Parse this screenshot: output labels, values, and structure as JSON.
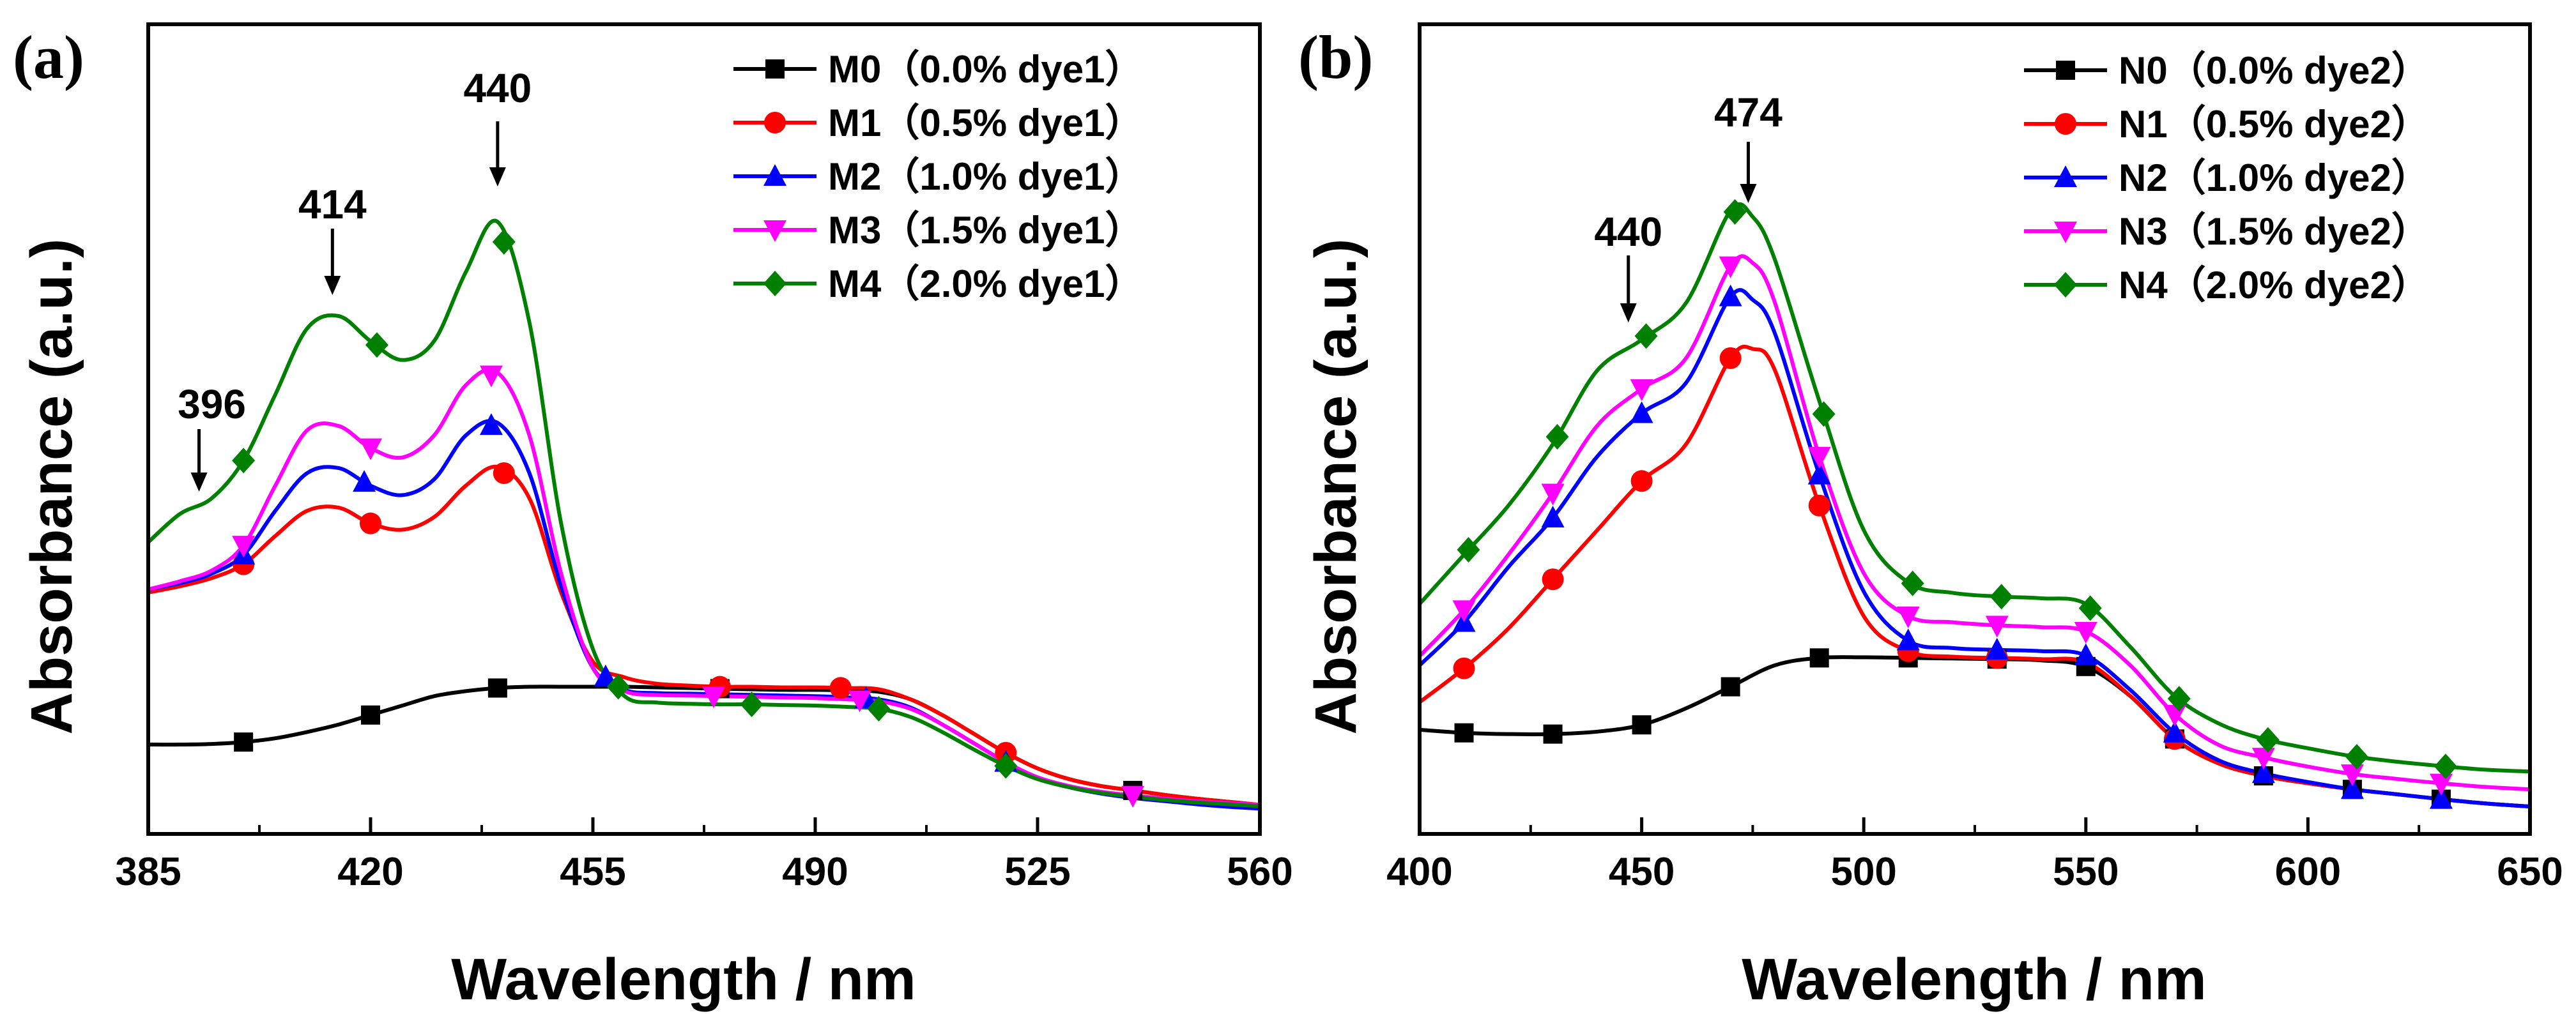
{
  "colors": {
    "s0": "#000000",
    "s1": "#ff0000",
    "s2": "#0000ff",
    "s3": "#ff00ff",
    "s4": "#008000"
  },
  "chart_data": [
    {
      "type": "line",
      "panel_label": "(a)",
      "title": "",
      "xlabel": "Wavelength / nm",
      "ylabel": "Absorbance (a.u.)",
      "xlim": [
        385,
        560
      ],
      "ylim": [
        0,
        1
      ],
      "xticks": [
        385,
        420,
        455,
        490,
        525,
        560
      ],
      "grid": false,
      "legend_position": "top-right",
      "series": [
        {
          "name": "M0（0.0% dye1）",
          "color": "#000000",
          "marker": "square",
          "x": [
            385,
            390,
            395,
            400,
            405,
            410,
            415,
            420,
            425,
            430,
            435,
            440,
            445,
            450,
            455,
            460,
            465,
            470,
            475,
            480,
            485,
            490,
            495,
            500,
            505,
            510,
            515,
            520,
            525,
            530,
            535,
            540,
            545,
            550,
            555,
            560
          ],
          "y": [
            0.128,
            0.128,
            0.129,
            0.132,
            0.138,
            0.148,
            0.16,
            0.175,
            0.19,
            0.205,
            0.213,
            0.218,
            0.22,
            0.22,
            0.22,
            0.22,
            0.219,
            0.218,
            0.217,
            0.216,
            0.215,
            0.215,
            0.214,
            0.212,
            0.2,
            0.175,
            0.145,
            0.115,
            0.09,
            0.073,
            0.062,
            0.055,
            0.048,
            0.042,
            0.037,
            0.032
          ],
          "marker_x": [
            400,
            420,
            440,
            475,
            540
          ]
        },
        {
          "name": "M1（0.5% dye1）",
          "color": "#ff0000",
          "marker": "circle",
          "x": [
            385,
            390,
            395,
            400,
            405,
            410,
            415,
            420,
            425,
            430,
            435,
            440,
            445,
            450,
            455,
            460,
            465,
            470,
            475,
            480,
            485,
            490,
            495,
            500,
            505,
            510,
            515,
            520,
            525,
            530,
            535,
            540,
            545,
            550,
            555,
            560
          ],
          "y": [
            0.37,
            0.38,
            0.393,
            0.415,
            0.46,
            0.5,
            0.505,
            0.48,
            0.47,
            0.49,
            0.54,
            0.57,
            0.52,
            0.37,
            0.26,
            0.235,
            0.225,
            0.222,
            0.22,
            0.22,
            0.219,
            0.219,
            0.218,
            0.216,
            0.2,
            0.175,
            0.145,
            0.115,
            0.09,
            0.073,
            0.062,
            0.055,
            0.048,
            0.042,
            0.037,
            0.032
          ],
          "marker_x": [
            400,
            420,
            441,
            475,
            494,
            520
          ]
        },
        {
          "name": "M2（1.0% dye1）",
          "color": "#0000ff",
          "marker": "triangle-up",
          "x": [
            385,
            390,
            395,
            400,
            405,
            410,
            415,
            420,
            425,
            430,
            435,
            440,
            445,
            450,
            455,
            460,
            465,
            470,
            475,
            480,
            485,
            490,
            495,
            500,
            505,
            510,
            515,
            520,
            525,
            530,
            535,
            540,
            545,
            550,
            555,
            560
          ],
          "y": [
            0.375,
            0.385,
            0.4,
            0.43,
            0.5,
            0.56,
            0.568,
            0.54,
            0.525,
            0.55,
            0.62,
            0.64,
            0.56,
            0.38,
            0.25,
            0.215,
            0.21,
            0.209,
            0.208,
            0.207,
            0.206,
            0.205,
            0.203,
            0.2,
            0.187,
            0.16,
            0.13,
            0.1,
            0.075,
            0.06,
            0.05,
            0.043,
            0.038,
            0.033,
            0.029,
            0.026
          ],
          "marker_x": [
            400,
            419,
            439,
            457,
            498,
            520
          ]
        },
        {
          "name": "M3（1.5% dye1）",
          "color": "#ff00ff",
          "marker": "triangle-down",
          "x": [
            385,
            390,
            395,
            400,
            405,
            410,
            415,
            420,
            425,
            430,
            435,
            440,
            445,
            450,
            455,
            460,
            465,
            470,
            475,
            480,
            485,
            490,
            495,
            500,
            505,
            510,
            515,
            520,
            525,
            530,
            535,
            540,
            545,
            550,
            555,
            560
          ],
          "y": [
            0.375,
            0.388,
            0.405,
            0.445,
            0.54,
            0.628,
            0.635,
            0.6,
            0.585,
            0.62,
            0.7,
            0.72,
            0.62,
            0.4,
            0.25,
            0.213,
            0.207,
            0.206,
            0.205,
            0.204,
            0.203,
            0.202,
            0.2,
            0.197,
            0.185,
            0.16,
            0.13,
            0.1,
            0.076,
            0.062,
            0.053,
            0.047,
            0.042,
            0.038,
            0.035,
            0.032
          ],
          "marker_x": [
            400,
            420,
            439,
            474,
            497,
            540
          ]
        },
        {
          "name": "M4（2.0% dye1）",
          "color": "#008000",
          "marker": "diamond",
          "x": [
            385,
            390,
            395,
            400,
            405,
            410,
            415,
            420,
            425,
            430,
            435,
            440,
            445,
            450,
            455,
            460,
            465,
            470,
            475,
            480,
            485,
            490,
            495,
            500,
            505,
            510,
            515,
            520,
            525,
            530,
            535,
            540,
            545,
            550,
            555,
            560
          ],
          "y": [
            0.45,
            0.495,
            0.52,
            0.58,
            0.685,
            0.79,
            0.81,
            0.77,
            0.74,
            0.77,
            0.88,
            0.96,
            0.8,
            0.48,
            0.28,
            0.205,
            0.195,
            0.193,
            0.192,
            0.192,
            0.191,
            0.19,
            0.188,
            0.185,
            0.172,
            0.148,
            0.12,
            0.094,
            0.073,
            0.06,
            0.051,
            0.045,
            0.04,
            0.036,
            0.033,
            0.03
          ],
          "marker_x": [
            400,
            421,
            441,
            459,
            480,
            500,
            520
          ]
        }
      ],
      "annotations": [
        {
          "text": "440",
          "x": 440,
          "arrow": true
        },
        {
          "text": "414",
          "x": 414,
          "arrow": true
        },
        {
          "text": "396",
          "x": 393,
          "arrow": true
        }
      ]
    },
    {
      "type": "line",
      "panel_label": "(b)",
      "title": "",
      "xlabel": "Wavelength / nm",
      "ylabel": "Absorbance (a.u.)",
      "xlim": [
        400,
        650
      ],
      "ylim": [
        0,
        1
      ],
      "xticks": [
        400,
        450,
        500,
        550,
        600,
        650
      ],
      "grid": false,
      "legend_position": "top-right",
      "series": [
        {
          "name": "N0（0.0% dye2）",
          "color": "#000000",
          "marker": "square",
          "x": [
            400,
            410,
            420,
            430,
            440,
            450,
            460,
            470,
            480,
            490,
            500,
            510,
            520,
            530,
            540,
            550,
            560,
            570,
            580,
            590,
            600,
            610,
            620,
            630,
            640,
            650
          ],
          "y": [
            0.155,
            0.15,
            0.148,
            0.148,
            0.152,
            0.163,
            0.19,
            0.225,
            0.26,
            0.272,
            0.273,
            0.272,
            0.271,
            0.27,
            0.268,
            0.258,
            0.21,
            0.14,
            0.1,
            0.08,
            0.068,
            0.058,
            0.05,
            0.042,
            0.035,
            0.03
          ],
          "marker_x": [
            410,
            430,
            450,
            470,
            490,
            510,
            530,
            550,
            570,
            590,
            610,
            630
          ]
        },
        {
          "name": "N1（0.5% dye2）",
          "color": "#ff0000",
          "marker": "circle",
          "x": [
            400,
            410,
            420,
            430,
            440,
            450,
            460,
            470,
            475,
            480,
            490,
            500,
            510,
            520,
            530,
            540,
            550,
            560,
            570,
            580,
            590,
            600,
            610,
            620,
            630,
            640,
            650
          ],
          "y": [
            0.2,
            0.255,
            0.32,
            0.4,
            0.48,
            0.56,
            0.62,
            0.76,
            0.775,
            0.74,
            0.52,
            0.34,
            0.283,
            0.274,
            0.272,
            0.27,
            0.265,
            0.21,
            0.14,
            0.1,
            0.08,
            0.068,
            0.058,
            0.05,
            0.042,
            0.035,
            0.03
          ],
          "marker_x": [
            410,
            430,
            450,
            470,
            490,
            510,
            530,
            570
          ]
        },
        {
          "name": "N2（1.0% dye2）",
          "color": "#0000ff",
          "marker": "triangle-up",
          "x": [
            400,
            410,
            420,
            430,
            440,
            450,
            460,
            470,
            475,
            480,
            490,
            500,
            510,
            520,
            530,
            540,
            550,
            560,
            570,
            580,
            590,
            600,
            610,
            620,
            630,
            640,
            650
          ],
          "y": [
            0.26,
            0.33,
            0.42,
            0.5,
            0.6,
            0.67,
            0.72,
            0.86,
            0.855,
            0.8,
            0.57,
            0.38,
            0.3,
            0.288,
            0.285,
            0.283,
            0.276,
            0.22,
            0.15,
            0.105,
            0.084,
            0.07,
            0.058,
            0.05,
            0.042,
            0.035,
            0.03
          ],
          "marker_x": [
            410,
            430,
            450,
            470,
            490,
            510,
            530,
            550,
            570,
            590,
            610,
            630
          ]
        },
        {
          "name": "N3（1.5% dye2）",
          "color": "#ff00ff",
          "marker": "triangle-down",
          "x": [
            400,
            410,
            420,
            430,
            440,
            450,
            460,
            470,
            475,
            480,
            490,
            500,
            510,
            520,
            530,
            540,
            550,
            560,
            570,
            580,
            590,
            600,
            610,
            620,
            630,
            640,
            650
          ],
          "y": [
            0.275,
            0.35,
            0.44,
            0.54,
            0.65,
            0.71,
            0.76,
            0.91,
            0.915,
            0.85,
            0.6,
            0.41,
            0.34,
            0.33,
            0.325,
            0.322,
            0.315,
            0.26,
            0.18,
            0.13,
            0.11,
            0.095,
            0.083,
            0.075,
            0.068,
            0.062,
            0.058
          ],
          "marker_x": [
            410,
            430,
            450,
            470,
            490,
            510,
            530,
            550,
            570,
            590,
            610,
            630
          ]
        },
        {
          "name": "N4（2.0% dye2）",
          "color": "#008000",
          "marker": "diamond",
          "x": [
            400,
            410,
            420,
            430,
            440,
            450,
            460,
            470,
            475,
            480,
            490,
            500,
            510,
            520,
            530,
            540,
            550,
            560,
            570,
            580,
            590,
            600,
            610,
            620,
            630,
            640,
            650
          ],
          "y": [
            0.36,
            0.44,
            0.52,
            0.62,
            0.74,
            0.79,
            0.85,
            1.0,
            0.99,
            0.92,
            0.69,
            0.48,
            0.395,
            0.378,
            0.372,
            0.369,
            0.36,
            0.29,
            0.21,
            0.165,
            0.14,
            0.125,
            0.112,
            0.103,
            0.096,
            0.09,
            0.087
          ],
          "marker_x": [
            411,
            431,
            451,
            471,
            491,
            511,
            531,
            551,
            571,
            591,
            611,
            631
          ]
        }
      ],
      "annotations": [
        {
          "text": "474",
          "x": 474,
          "arrow": true
        },
        {
          "text": "440",
          "x": 447,
          "arrow": true
        }
      ]
    }
  ]
}
